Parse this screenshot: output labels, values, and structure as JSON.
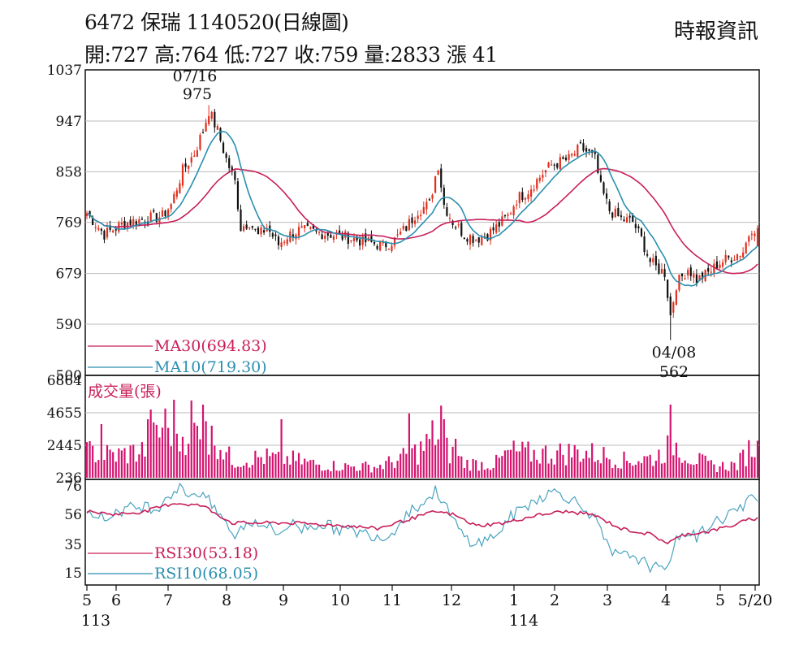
{
  "header": {
    "title": "6472  保瑞 1140520(日線圖)",
    "quote": "開:727 高:764 低:727 收:759 量:2833 漲 41",
    "source": "時報資訊"
  },
  "colors": {
    "up": "#e0301e",
    "down": "#111111",
    "ma30": "#c81e5a",
    "ma10": "#2a8fb0",
    "volume": "#d4136f",
    "rsi30": "#c81e5a",
    "rsi10": "#4aa3c0",
    "grid": "#bbbbbb"
  },
  "chart_data": {
    "type": "candlestick",
    "price_axis": {
      "ticks": [
        "1037",
        "947",
        "858",
        "769",
        "679",
        "590",
        "500"
      ],
      "ylim": [
        500,
        1037
      ]
    },
    "volume_axis": {
      "ticks": [
        "6864",
        "4655",
        "2445",
        "236"
      ],
      "ylim": [
        236,
        6864
      ]
    },
    "rsi_axis": {
      "ticks": [
        "76",
        "56",
        "35",
        "15"
      ],
      "ylim": [
        15,
        76
      ]
    },
    "x_ticks": [
      "5",
      "6",
      "7",
      "8",
      "9",
      "10",
      "11",
      "12",
      "1",
      "2",
      "3",
      "4",
      "5",
      "5/20"
    ],
    "year_labels": [
      "113",
      "114"
    ],
    "last_bar": {
      "open": 727,
      "high": 764,
      "low": 727,
      "close": 759,
      "volume": 2833,
      "change": 41
    },
    "annotations": {
      "high": {
        "date": "07/16",
        "value": "975"
      },
      "low": {
        "date": "04/08",
        "value": "562"
      }
    },
    "price_anchors": [
      [
        0,
        785
      ],
      [
        6,
        748
      ],
      [
        13,
        768
      ],
      [
        20,
        775
      ],
      [
        26,
        780
      ],
      [
        29,
        800
      ],
      [
        33,
        860
      ],
      [
        37,
        890
      ],
      [
        40,
        930
      ],
      [
        42,
        965
      ],
      [
        45,
        930
      ],
      [
        48,
        880
      ],
      [
        51,
        840
      ],
      [
        53,
        760
      ],
      [
        56,
        770
      ],
      [
        59,
        745
      ],
      [
        62,
        760
      ],
      [
        66,
        730
      ],
      [
        69,
        745
      ],
      [
        73,
        755
      ],
      [
        78,
        752
      ],
      [
        84,
        748
      ],
      [
        90,
        742
      ],
      [
        96,
        735
      ],
      [
        102,
        728
      ],
      [
        106,
        738
      ],
      [
        110,
        760
      ],
      [
        114,
        790
      ],
      [
        118,
        800
      ],
      [
        120,
        850
      ],
      [
        121,
        870
      ],
      [
        123,
        800
      ],
      [
        126,
        770
      ],
      [
        130,
        748
      ],
      [
        134,
        740
      ],
      [
        138,
        748
      ],
      [
        141,
        760
      ],
      [
        145,
        780
      ],
      [
        148,
        810
      ],
      [
        152,
        825
      ],
      [
        157,
        855
      ],
      [
        160,
        870
      ],
      [
        163,
        875
      ],
      [
        166,
        880
      ],
      [
        170,
        900
      ],
      [
        173,
        890
      ],
      [
        175,
        880
      ],
      [
        177,
        830
      ],
      [
        180,
        790
      ],
      [
        184,
        775
      ],
      [
        188,
        770
      ],
      [
        191,
        740
      ],
      [
        194,
        700
      ],
      [
        196,
        690
      ],
      [
        199,
        680
      ],
      [
        201,
        605
      ],
      [
        203,
        660
      ],
      [
        207,
        688
      ],
      [
        210,
        668
      ],
      [
        214,
        680
      ],
      [
        218,
        698
      ],
      [
        222,
        708
      ],
      [
        226,
        718
      ],
      [
        228,
        748
      ],
      [
        229,
        759
      ]
    ],
    "volume_anchors": [
      [
        0,
        0.28
      ],
      [
        10,
        0.24
      ],
      [
        20,
        0.3
      ],
      [
        26,
        0.52
      ],
      [
        30,
        0.28
      ],
      [
        36,
        0.62
      ],
      [
        40,
        0.3
      ],
      [
        44,
        0.45
      ],
      [
        50,
        0.18
      ],
      [
        60,
        0.22
      ],
      [
        70,
        0.2
      ],
      [
        80,
        0.14
      ],
      [
        90,
        0.12
      ],
      [
        100,
        0.12
      ],
      [
        108,
        0.2
      ],
      [
        116,
        0.32
      ],
      [
        120,
        0.48
      ],
      [
        124,
        0.3
      ],
      [
        130,
        0.16
      ],
      [
        140,
        0.14
      ],
      [
        146,
        0.28
      ],
      [
        152,
        0.26
      ],
      [
        160,
        0.26
      ],
      [
        170,
        0.28
      ],
      [
        178,
        0.24
      ],
      [
        186,
        0.18
      ],
      [
        196,
        0.22
      ],
      [
        202,
        0.38
      ],
      [
        208,
        0.22
      ],
      [
        216,
        0.12
      ],
      [
        224,
        0.14
      ],
      [
        229,
        0.34
      ]
    ],
    "volume_spikes": [
      [
        5,
        0.55
      ],
      [
        21,
        0.6
      ],
      [
        22,
        0.7
      ],
      [
        27,
        0.71
      ],
      [
        30,
        0.8
      ],
      [
        40,
        0.75
      ],
      [
        41,
        0.58
      ],
      [
        67,
        0.6
      ],
      [
        111,
        0.66
      ],
      [
        122,
        0.74
      ],
      [
        123,
        0.6
      ],
      [
        127,
        0.4
      ],
      [
        201,
        0.75
      ],
      [
        231,
        0.38
      ]
    ],
    "rsi10_anchors": [
      [
        0,
        62
      ],
      [
        6,
        52
      ],
      [
        10,
        58
      ],
      [
        14,
        60
      ],
      [
        20,
        62
      ],
      [
        24,
        60
      ],
      [
        28,
        70
      ],
      [
        32,
        74
      ],
      [
        36,
        70
      ],
      [
        40,
        72
      ],
      [
        44,
        58
      ],
      [
        47,
        54
      ],
      [
        50,
        40
      ],
      [
        54,
        48
      ],
      [
        58,
        52
      ],
      [
        62,
        48
      ],
      [
        66,
        42
      ],
      [
        70,
        50
      ],
      [
        74,
        46
      ],
      [
        80,
        50
      ],
      [
        86,
        46
      ],
      [
        92,
        44
      ],
      [
        98,
        42
      ],
      [
        104,
        40
      ],
      [
        108,
        52
      ],
      [
        112,
        60
      ],
      [
        116,
        64
      ],
      [
        120,
        72
      ],
      [
        122,
        68
      ],
      [
        126,
        52
      ],
      [
        130,
        40
      ],
      [
        134,
        36
      ],
      [
        138,
        38
      ],
      [
        142,
        44
      ],
      [
        146,
        54
      ],
      [
        150,
        60
      ],
      [
        154,
        66
      ],
      [
        158,
        70
      ],
      [
        162,
        72
      ],
      [
        166,
        68
      ],
      [
        170,
        62
      ],
      [
        174,
        56
      ],
      [
        176,
        48
      ],
      [
        180,
        30
      ],
      [
        184,
        26
      ],
      [
        188,
        28
      ],
      [
        192,
        22
      ],
      [
        196,
        18
      ],
      [
        199,
        15
      ],
      [
        202,
        34
      ],
      [
        206,
        44
      ],
      [
        210,
        40
      ],
      [
        214,
        48
      ],
      [
        218,
        52
      ],
      [
        222,
        58
      ],
      [
        226,
        60
      ],
      [
        229,
        68
      ]
    ],
    "rsi30_anchors": [
      [
        0,
        58
      ],
      [
        10,
        56
      ],
      [
        20,
        58
      ],
      [
        30,
        64
      ],
      [
        40,
        62
      ],
      [
        50,
        50
      ],
      [
        60,
        50
      ],
      [
        70,
        50
      ],
      [
        80,
        49
      ],
      [
        90,
        48
      ],
      [
        100,
        46
      ],
      [
        110,
        52
      ],
      [
        120,
        58
      ],
      [
        126,
        56
      ],
      [
        134,
        48
      ],
      [
        144,
        50
      ],
      [
        154,
        55
      ],
      [
        164,
        58
      ],
      [
        174,
        56
      ],
      [
        184,
        46
      ],
      [
        194,
        42
      ],
      [
        200,
        36
      ],
      [
        206,
        42
      ],
      [
        214,
        44
      ],
      [
        222,
        48
      ],
      [
        229,
        53
      ]
    ],
    "legend": {
      "ma30": "MA30(694.83)",
      "ma10": "MA10(719.30)",
      "volume": "成交量(張)",
      "rsi30": "RSI30(53.18)",
      "rsi10": "RSI10(68.05)"
    }
  }
}
